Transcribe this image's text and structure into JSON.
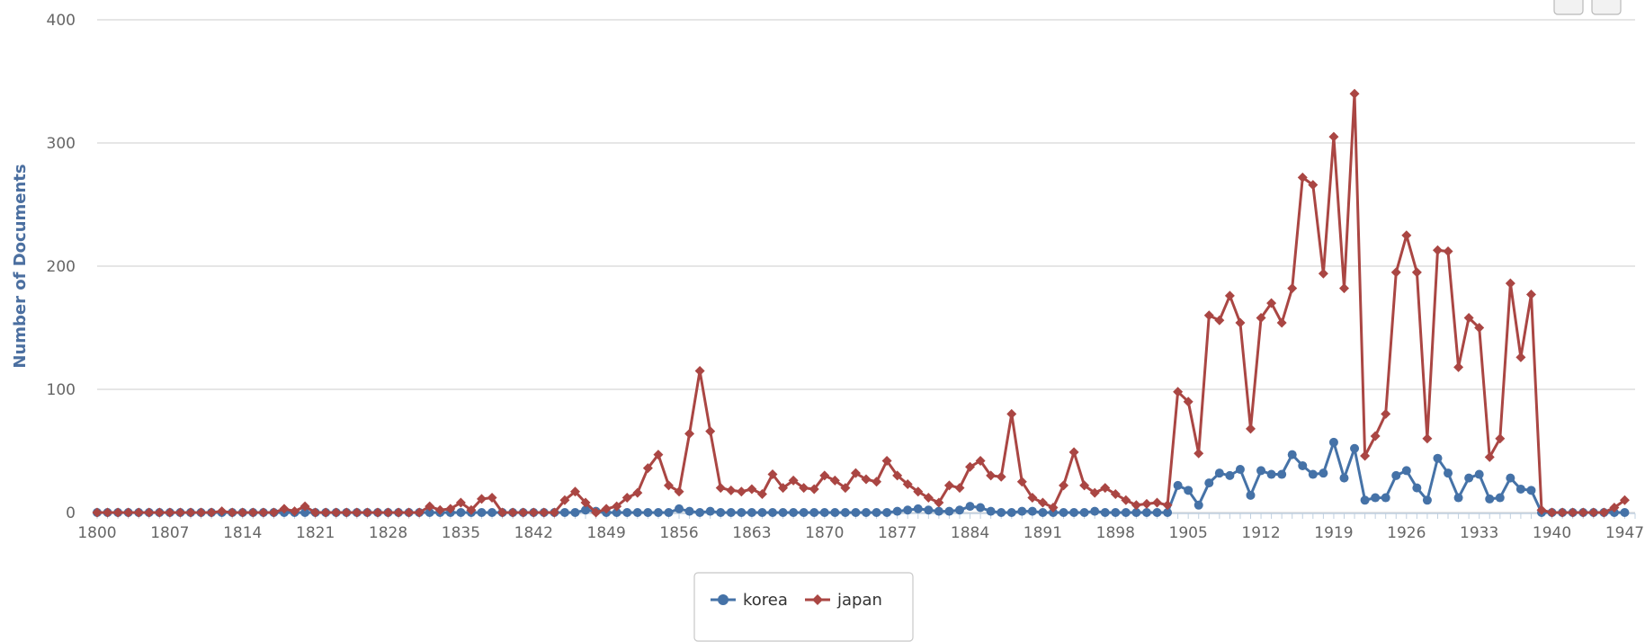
{
  "chart_data": {
    "type": "line",
    "title": "",
    "xlabel": "",
    "ylabel": "Number of Documents",
    "ylim": [
      0,
      400
    ],
    "yticks": [
      0,
      100,
      200,
      300,
      400
    ],
    "xlim": [
      1800,
      1948
    ],
    "xticks": [
      1800,
      1807,
      1814,
      1821,
      1828,
      1835,
      1842,
      1849,
      1856,
      1863,
      1870,
      1877,
      1884,
      1891,
      1898,
      1905,
      1912,
      1919,
      1926,
      1933,
      1940,
      1947
    ],
    "grid": true,
    "legend_position": "bottom-center",
    "series": [
      {
        "name": "korea",
        "color": "#4572a7",
        "marker": "circle",
        "x": [
          1800,
          1801,
          1802,
          1803,
          1804,
          1805,
          1806,
          1807,
          1808,
          1809,
          1810,
          1811,
          1812,
          1813,
          1814,
          1815,
          1816,
          1817,
          1818,
          1819,
          1820,
          1821,
          1822,
          1823,
          1824,
          1825,
          1826,
          1827,
          1828,
          1829,
          1830,
          1831,
          1832,
          1833,
          1834,
          1835,
          1836,
          1837,
          1838,
          1839,
          1840,
          1841,
          1842,
          1843,
          1844,
          1845,
          1846,
          1847,
          1848,
          1849,
          1850,
          1851,
          1852,
          1853,
          1854,
          1855,
          1856,
          1857,
          1858,
          1859,
          1860,
          1861,
          1862,
          1863,
          1864,
          1865,
          1866,
          1867,
          1868,
          1869,
          1870,
          1871,
          1872,
          1873,
          1874,
          1875,
          1876,
          1877,
          1878,
          1879,
          1880,
          1881,
          1882,
          1883,
          1884,
          1885,
          1886,
          1887,
          1888,
          1889,
          1890,
          1891,
          1892,
          1893,
          1894,
          1895,
          1896,
          1897,
          1898,
          1899,
          1900,
          1901,
          1902,
          1903,
          1904,
          1905,
          1906,
          1907,
          1908,
          1909,
          1910,
          1911,
          1912,
          1913,
          1914,
          1915,
          1916,
          1917,
          1918,
          1919,
          1920,
          1921,
          1922,
          1923,
          1924,
          1925,
          1926,
          1927,
          1928,
          1929,
          1930,
          1931,
          1932,
          1933,
          1934,
          1935,
          1936,
          1937,
          1938,
          1939,
          1940,
          1941,
          1942,
          1943,
          1944,
          1945,
          1946,
          1947
        ],
        "values": [
          0,
          0,
          0,
          0,
          0,
          0,
          0,
          0,
          0,
          0,
          0,
          0,
          0,
          0,
          0,
          0,
          0,
          0,
          0,
          0,
          0,
          0,
          0,
          0,
          0,
          0,
          0,
          0,
          0,
          0,
          0,
          0,
          0,
          0,
          0,
          0,
          0,
          0,
          0,
          0,
          0,
          0,
          0,
          0,
          0,
          0,
          0,
          2,
          1,
          0,
          0,
          0,
          0,
          0,
          0,
          0,
          3,
          1,
          0,
          1,
          0,
          0,
          0,
          0,
          0,
          0,
          0,
          0,
          0,
          0,
          0,
          0,
          0,
          0,
          0,
          0,
          0,
          1,
          2,
          3,
          2,
          1,
          1,
          2,
          5,
          4,
          1,
          0,
          0,
          1,
          1,
          0,
          0,
          0,
          0,
          0,
          1,
          0,
          0,
          0,
          0,
          0,
          0,
          0,
          22,
          18,
          6,
          24,
          32,
          30,
          35,
          14,
          34,
          31,
          31,
          47,
          38,
          31,
          32,
          57,
          28,
          52,
          10,
          12,
          12,
          30,
          34,
          20,
          10,
          44,
          32,
          12,
          28,
          31,
          11,
          12,
          28,
          19,
          18,
          0,
          0,
          0,
          0,
          0,
          0,
          0,
          0,
          0
        ]
      },
      {
        "name": "japan",
        "color": "#aa4643",
        "marker": "diamond",
        "x": [
          1800,
          1801,
          1802,
          1803,
          1804,
          1805,
          1806,
          1807,
          1808,
          1809,
          1810,
          1811,
          1812,
          1813,
          1814,
          1815,
          1816,
          1817,
          1818,
          1819,
          1820,
          1821,
          1822,
          1823,
          1824,
          1825,
          1826,
          1827,
          1828,
          1829,
          1830,
          1831,
          1832,
          1833,
          1834,
          1835,
          1836,
          1837,
          1838,
          1839,
          1840,
          1841,
          1842,
          1843,
          1844,
          1845,
          1846,
          1847,
          1848,
          1849,
          1850,
          1851,
          1852,
          1853,
          1854,
          1855,
          1856,
          1857,
          1858,
          1859,
          1860,
          1861,
          1862,
          1863,
          1864,
          1865,
          1866,
          1867,
          1868,
          1869,
          1870,
          1871,
          1872,
          1873,
          1874,
          1875,
          1876,
          1877,
          1878,
          1879,
          1880,
          1881,
          1882,
          1883,
          1884,
          1885,
          1886,
          1887,
          1888,
          1889,
          1890,
          1891,
          1892,
          1893,
          1894,
          1895,
          1896,
          1897,
          1898,
          1899,
          1900,
          1901,
          1902,
          1903,
          1904,
          1905,
          1906,
          1907,
          1908,
          1909,
          1910,
          1911,
          1912,
          1913,
          1914,
          1915,
          1916,
          1917,
          1918,
          1919,
          1920,
          1921,
          1922,
          1923,
          1924,
          1925,
          1926,
          1927,
          1928,
          1929,
          1930,
          1931,
          1932,
          1933,
          1934,
          1935,
          1936,
          1937,
          1938,
          1939,
          1940,
          1941,
          1942,
          1943,
          1944,
          1945,
          1946,
          1947
        ],
        "values": [
          0,
          0,
          0,
          0,
          0,
          0,
          0,
          0,
          0,
          0,
          0,
          0,
          1,
          0,
          0,
          0,
          0,
          0,
          3,
          1,
          5,
          0,
          0,
          0,
          0,
          0,
          0,
          0,
          0,
          0,
          0,
          0,
          5,
          2,
          3,
          8,
          2,
          11,
          12,
          0,
          0,
          0,
          0,
          0,
          0,
          10,
          17,
          8,
          0,
          3,
          5,
          12,
          16,
          36,
          47,
          22,
          17,
          64,
          115,
          66,
          20,
          18,
          17,
          19,
          15,
          31,
          20,
          26,
          20,
          19,
          30,
          26,
          20,
          32,
          27,
          25,
          42,
          30,
          23,
          17,
          12,
          8,
          22,
          20,
          37,
          42,
          30,
          29,
          80,
          25,
          12,
          8,
          4,
          22,
          49,
          22,
          16,
          20,
          15,
          10,
          6,
          7,
          8,
          6,
          98,
          90,
          48,
          160,
          156,
          176,
          154,
          68,
          158,
          170,
          154,
          182,
          272,
          266,
          194,
          305,
          182,
          340,
          46,
          62,
          80,
          195,
          225,
          195,
          60,
          213,
          212,
          118,
          158,
          150,
          45,
          60,
          186,
          126,
          177,
          2,
          0,
          0,
          0,
          0,
          0,
          0,
          4,
          10
        ]
      }
    ]
  }
}
